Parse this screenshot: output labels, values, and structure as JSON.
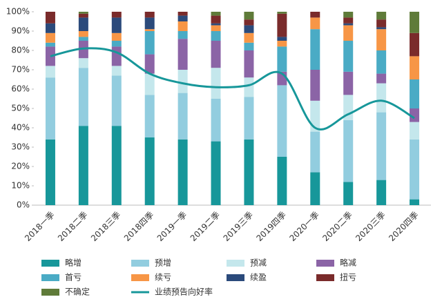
{
  "chart_data": {
    "type": "bar",
    "stacked": true,
    "categories": [
      "2018一季",
      "2018二季",
      "2018三季",
      "2018四季",
      "2019一季",
      "2019二季",
      "2019三季",
      "2019四季",
      "2020一季",
      "2020二季",
      "2020三季",
      "2020四季"
    ],
    "series": [
      {
        "name": "略增",
        "color": "#17979a",
        "values": [
          34,
          41,
          41,
          35,
          34,
          33,
          34,
          25,
          17,
          12,
          13,
          3
        ]
      },
      {
        "name": "预增",
        "color": "#92cddf",
        "values": [
          32,
          30,
          26,
          22,
          24,
          22,
          22,
          37,
          21,
          32,
          35,
          31
        ]
      },
      {
        "name": "预减",
        "color": "#c4e7ec",
        "values": [
          6,
          5,
          5,
          11,
          12,
          16,
          10,
          0,
          16,
          13,
          15,
          9
        ]
      },
      {
        "name": "略减",
        "color": "#8b64a6",
        "values": [
          10,
          9,
          10,
          10,
          16,
          14,
          14,
          7,
          16,
          12,
          5,
          7
        ]
      },
      {
        "name": "首亏",
        "color": "#4aabc5",
        "values": [
          2,
          2,
          3,
          12,
          4,
          5,
          4,
          13,
          21,
          16,
          12,
          15
        ]
      },
      {
        "name": "续亏",
        "color": "#f79646",
        "values": [
          5,
          3,
          4,
          1,
          5,
          3,
          5,
          3,
          6,
          8,
          11,
          12
        ]
      },
      {
        "name": "续盈",
        "color": "#2b4a7b",
        "values": [
          5,
          7,
          8,
          6,
          3,
          1,
          4,
          2,
          0,
          1,
          1,
          0
        ]
      },
      {
        "name": "扭亏",
        "color": "#7a2b2b",
        "values": [
          6,
          2,
          3,
          3,
          2,
          4,
          3,
          12,
          3,
          3,
          4,
          12
        ]
      },
      {
        "name": "不确定",
        "color": "#5f7b39",
        "values": [
          0,
          1,
          0,
          0,
          0,
          2,
          4,
          1,
          0,
          3,
          4,
          11
        ]
      },
      {
        "name": "业绩预告向好率",
        "type": "line",
        "color": "#17979a",
        "values": [
          77,
          81,
          79,
          68,
          63,
          61,
          62,
          68,
          40,
          47,
          54,
          45
        ]
      }
    ],
    "ylim": [
      0,
      100
    ],
    "yticks": [
      {
        "value": 0,
        "label": "0%"
      },
      {
        "value": 10,
        "label": "10%"
      },
      {
        "value": 20,
        "label": "20%"
      },
      {
        "value": 30,
        "label": "30%"
      },
      {
        "value": 40,
        "label": "40%"
      },
      {
        "value": 50,
        "label": "50%"
      },
      {
        "value": 60,
        "label": "60%"
      },
      {
        "value": 70,
        "label": "70%"
      },
      {
        "value": 80,
        "label": "80%"
      },
      {
        "value": 90,
        "label": "90%"
      },
      {
        "value": 100,
        "label": "100%"
      }
    ],
    "legend": "bottom"
  }
}
